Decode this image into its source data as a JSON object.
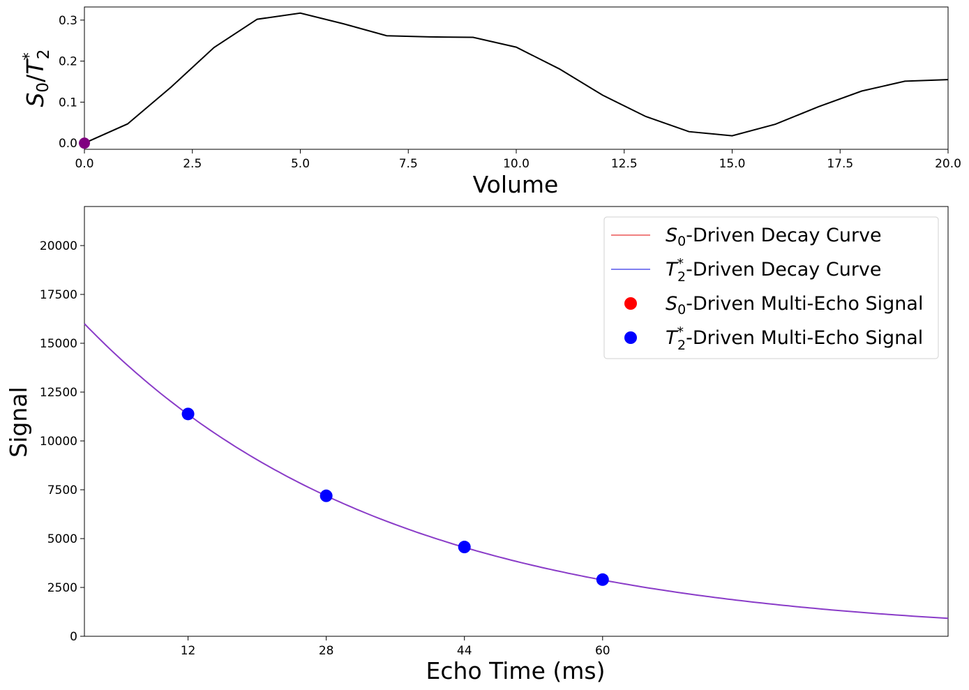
{
  "chart_data": [
    {
      "type": "line",
      "title": "",
      "xlabel": "Volume",
      "ylabel_main": "S",
      "ylabel_sub0": "0",
      "ylabel_slash": "/",
      "ylabel_t": "T",
      "ylabel_star": "*",
      "ylabel_sub2": "2",
      "xlim": [
        0,
        20
      ],
      "ylim": [
        -0.015,
        0.332
      ],
      "x_ticks": [
        0,
        2.5,
        5,
        7.5,
        10,
        12.5,
        15,
        17.5,
        20
      ],
      "x_tick_labels": [
        "0.0",
        "2.5",
        "5.0",
        "7.5",
        "10.0",
        "12.5",
        "15.0",
        "17.5",
        "20.0"
      ],
      "y_ticks": [
        0,
        0.1,
        0.2,
        0.3
      ],
      "y_tick_labels": [
        "0.0",
        "0.1",
        "0.2",
        "0.3"
      ],
      "grid": false,
      "series": [
        {
          "color": "#000000",
          "x": [
            0,
            1,
            2,
            3,
            4,
            5,
            6,
            7,
            8,
            9,
            10,
            11,
            12,
            13,
            14,
            15,
            16,
            17,
            18,
            19,
            20
          ],
          "values": [
            0.0,
            0.047,
            0.136,
            0.233,
            0.302,
            0.317,
            0.291,
            0.262,
            0.259,
            0.258,
            0.234,
            0.181,
            0.117,
            0.065,
            0.028,
            0.018,
            0.046,
            0.089,
            0.127,
            0.151,
            0.155
          ]
        }
      ],
      "marker": {
        "x": 0,
        "y": 0,
        "color": "#800080"
      }
    },
    {
      "type": "line",
      "title": "",
      "xlabel": "Echo Time (ms)",
      "ylabel": "Signal",
      "xlim": [
        0,
        100
      ],
      "ylim": [
        0,
        22000
      ],
      "x_ticks": [
        12,
        28,
        44,
        60
      ],
      "x_tick_labels": [
        "12",
        "28",
        "44",
        "60"
      ],
      "y_ticks": [
        0,
        2500,
        5000,
        7500,
        10000,
        12500,
        15000,
        17500,
        20000
      ],
      "y_tick_labels": [
        "0",
        "2500",
        "5000",
        "7500",
        "10000",
        "12500",
        "15000",
        "17500",
        "20000"
      ],
      "grid": false,
      "legend_placement": "upper right",
      "curve": {
        "s0": 16000,
        "t2star": 35
      },
      "echo_times": [
        12,
        28,
        44,
        60
      ],
      "echo_signal": [
        11380,
        7190,
        4570,
        2900
      ],
      "legend": [
        {
          "kind": "line",
          "color": "#f08080",
          "sym": "S",
          "sub": "0",
          "sup": "",
          "text": "-Driven Decay Curve"
        },
        {
          "kind": "line",
          "color": "#8080f0",
          "sym": "T",
          "sub": "2",
          "sup": "*",
          "text": "-Driven Decay Curve"
        },
        {
          "kind": "dot",
          "color": "#ff0000",
          "sym": "S",
          "sub": "0",
          "sup": "",
          "text": "-Driven Multi-Echo Signal"
        },
        {
          "kind": "dot",
          "color": "#0000ff",
          "sym": "T",
          "sub": "2",
          "sup": "*",
          "text": "-Driven Multi-Echo Signal"
        }
      ],
      "colors": {
        "curve": "#8a3cc8",
        "points": "#0000ff"
      }
    }
  ]
}
